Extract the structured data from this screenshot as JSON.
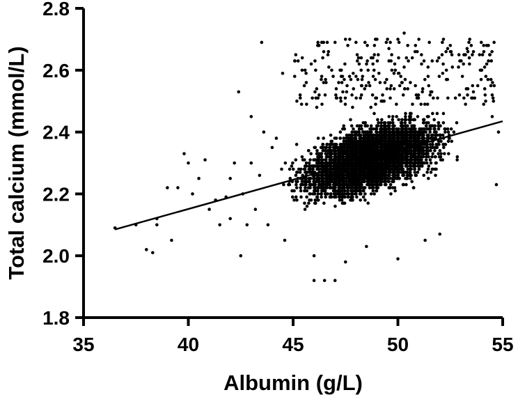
{
  "chart_data": {
    "type": "scatter",
    "xlabel": "Albumin (g/L)",
    "ylabel": "Total calcium (mmol/L)",
    "xlim": [
      35,
      55
    ],
    "ylim": [
      1.8,
      2.8
    ],
    "x_ticks": [
      "35",
      "40",
      "45",
      "50",
      "55"
    ],
    "y_ticks": [
      "1.8",
      "2.0",
      "2.2",
      "2.4",
      "2.6",
      "2.8"
    ],
    "x_tick_values": [
      35,
      40,
      45,
      50,
      55
    ],
    "y_tick_values": [
      1.8,
      2.0,
      2.2,
      2.4,
      2.6,
      2.8
    ],
    "grid": false,
    "legend": "none",
    "point_color": "#000000",
    "regression_line": {
      "x": [
        36.5,
        55
      ],
      "y": [
        2.085,
        2.435
      ]
    },
    "points": [
      [
        36.5,
        2.09
      ],
      [
        37.5,
        2.1
      ],
      [
        38.0,
        2.02
      ],
      [
        38.3,
        2.01
      ],
      [
        38.5,
        2.1
      ],
      [
        38.5,
        2.12
      ],
      [
        39.0,
        2.22
      ],
      [
        39.2,
        2.05
      ],
      [
        39.5,
        2.22
      ],
      [
        39.8,
        2.33
      ],
      [
        40.0,
        2.3
      ],
      [
        40.2,
        2.2
      ],
      [
        40.5,
        2.25
      ],
      [
        40.8,
        2.31
      ],
      [
        41.0,
        2.15
      ],
      [
        41.3,
        2.18
      ],
      [
        41.5,
        2.1
      ],
      [
        41.8,
        2.19
      ],
      [
        42.0,
        2.12
      ],
      [
        42.0,
        2.25
      ],
      [
        42.2,
        2.3
      ],
      [
        42.4,
        2.53
      ],
      [
        42.5,
        2.0
      ],
      [
        42.6,
        2.2
      ],
      [
        42.8,
        2.1
      ],
      [
        43.0,
        2.45
      ],
      [
        43.0,
        2.3
      ],
      [
        43.2,
        2.15
      ],
      [
        43.4,
        2.26
      ],
      [
        43.5,
        2.69
      ],
      [
        43.6,
        2.4
      ],
      [
        43.8,
        2.1
      ],
      [
        44.0,
        2.35
      ],
      [
        44.2,
        2.38
      ],
      [
        44.5,
        2.59
      ],
      [
        44.6,
        2.05
      ],
      [
        46.0,
        1.92
      ],
      [
        46.5,
        1.92
      ],
      [
        47.0,
        1.92
      ],
      [
        47.0,
        2.69
      ],
      [
        47.5,
        2.7
      ],
      [
        48.0,
        2.69
      ],
      [
        49.0,
        2.7
      ],
      [
        50.0,
        2.7
      ],
      [
        50.3,
        2.72
      ],
      [
        51.0,
        2.7
      ],
      [
        51.5,
        2.69
      ],
      [
        52.5,
        2.68
      ],
      [
        53.5,
        2.68
      ],
      [
        54.0,
        2.6
      ],
      [
        54.5,
        2.52
      ],
      [
        54.5,
        2.45
      ],
      [
        54.7,
        2.23
      ],
      [
        54.8,
        2.4
      ],
      [
        50.0,
        1.99
      ],
      [
        47.5,
        1.98
      ],
      [
        51.3,
        2.05
      ],
      [
        46.0,
        2.0
      ],
      [
        52.0,
        2.07
      ],
      [
        48.5,
        2.03
      ]
    ],
    "dense_cloud_note": ""
  }
}
